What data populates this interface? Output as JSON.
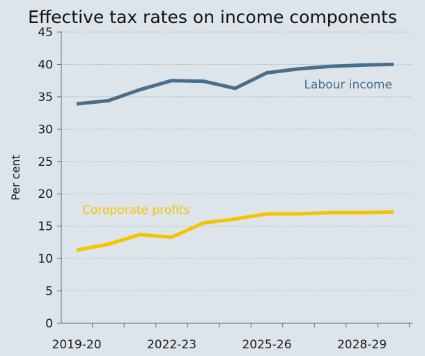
{
  "chart_data": {
    "type": "line",
    "title": "Effective tax rates on income components",
    "xlabel": "",
    "ylabel": "Per cent",
    "ylim": [
      0,
      45
    ],
    "y_ticks": [
      0,
      5,
      10,
      15,
      20,
      25,
      30,
      35,
      40,
      45
    ],
    "x": [
      "2019-20",
      "2020-21",
      "2021-22",
      "2022-23",
      "2023-24",
      "2024-25",
      "2025-26",
      "2026-27",
      "2027-28",
      "2028-29",
      "2029-30"
    ],
    "x_tick_labels": [
      {
        "index": 0,
        "label": "2019-20"
      },
      {
        "index": 3,
        "label": "2022-23"
      },
      {
        "index": 6,
        "label": "2025-26"
      },
      {
        "index": 9,
        "label": "2028-29"
      }
    ],
    "grid": true,
    "series": [
      {
        "name": "Labour income",
        "color": "#4a6d8c",
        "values": [
          33.9,
          34.4,
          36.1,
          37.5,
          37.4,
          36.3,
          38.7,
          39.3,
          39.7,
          39.9,
          40.0
        ]
      },
      {
        "name": "Coroporate profits",
        "color": "#f5c400",
        "values": [
          11.3,
          12.2,
          13.7,
          13.3,
          15.5,
          16.1,
          16.9,
          16.9,
          17.1,
          17.1,
          17.2
        ]
      }
    ]
  }
}
